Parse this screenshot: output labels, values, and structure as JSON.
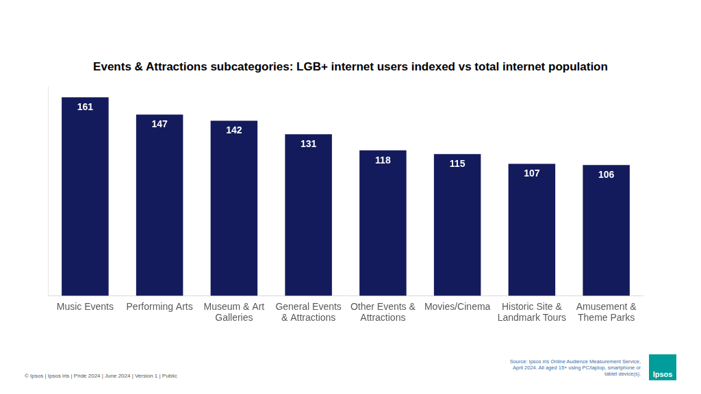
{
  "chart_data": {
    "type": "bar",
    "title": "Events & Attractions subcategories: LGB+ internet users indexed vs total internet population",
    "categories": [
      "Music Events",
      "Performing Arts",
      "Museum & Art Galleries",
      "General Events & Attractions",
      "Other Events & Attractions",
      "Movies/Cinema",
      "Historic Site & Landmark Tours",
      "Amusement & Theme Parks"
    ],
    "values": [
      161,
      147,
      142,
      131,
      118,
      115,
      107,
      106
    ],
    "color": "#141b5c",
    "ylim": [
      0,
      170
    ],
    "grid": false,
    "data_labels": true,
    "tick_labels": "x"
  },
  "footer": "© Ipsos | Ipsos iris | Pride 2024 | June 2024 | Version 1 | Public",
  "source": "Source: Ipsos iris Online Audience Measurement Service, April 2024. All aged 15+ using PC/laptop, smartphone or tablet device(s).",
  "logo": "Ipsos"
}
